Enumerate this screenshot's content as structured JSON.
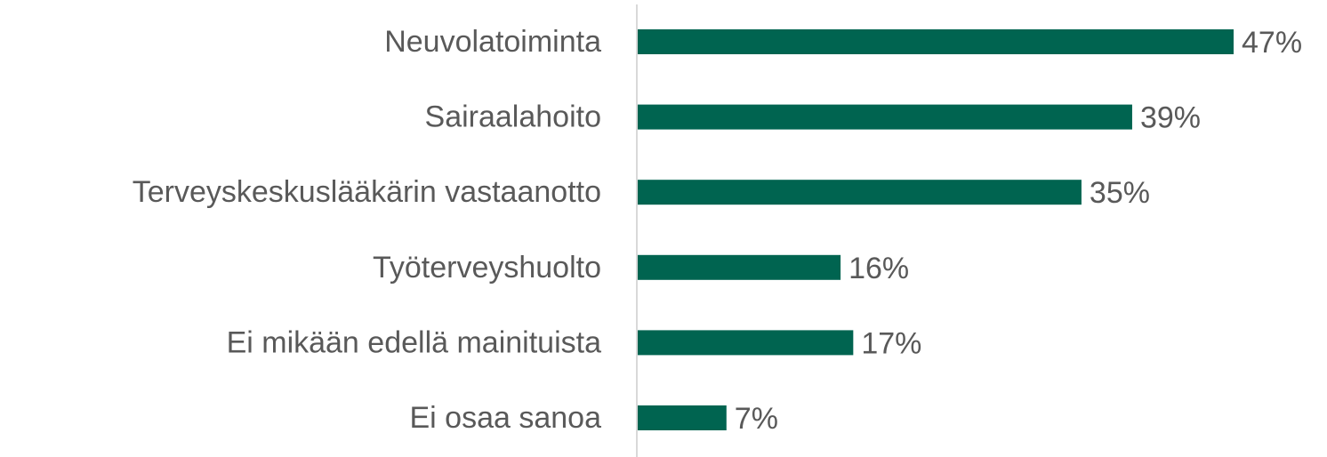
{
  "chart_data": {
    "type": "hbar",
    "categories": [
      "Neuvolatoiminta",
      "Sairaalahoito",
      "Terveyskeskuslääkärin vastaanotto",
      "Työterveyshuolto",
      "Ei mikään edellä mainituista",
      "Ei osaa sanoa"
    ],
    "values": [
      47,
      39,
      35,
      16,
      17,
      7
    ],
    "value_labels": [
      "47%",
      "39%",
      "35%",
      "16%",
      "17%",
      "7%"
    ],
    "color": "#006450"
  }
}
